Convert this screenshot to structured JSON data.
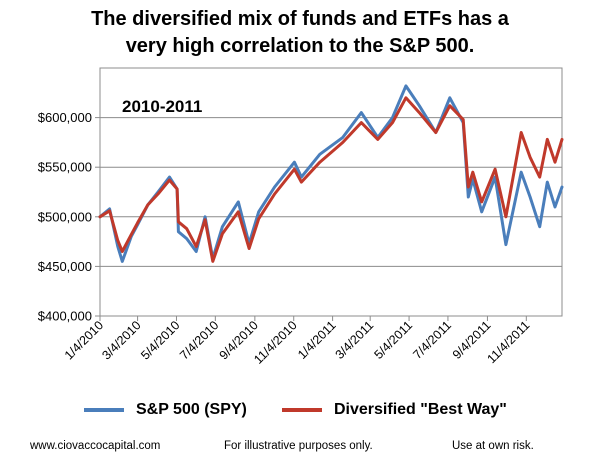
{
  "title_line1": "The diversified mix of funds and ETFs has a",
  "title_line2": "very high correlation to the S&P 500.",
  "footer": {
    "website": "www.ciovaccocapital.com",
    "disclaimer": "For illustrative purposes only.",
    "risk": "Use at own risk."
  },
  "chart_data": {
    "type": "line",
    "annotation": "2010-2011",
    "ylim": [
      400000,
      650000
    ],
    "yticks": [
      400000,
      450000,
      500000,
      550000,
      600000
    ],
    "ytick_labels": [
      "$400,000",
      "$450,000",
      "$500,000",
      "$550,000",
      "$600,000"
    ],
    "xlim": [
      "2010-01-04",
      "2011-12-30"
    ],
    "xtick_labels": [
      "1/4/2010",
      "3/4/2010",
      "5/4/2010",
      "7/4/2010",
      "9/4/2010",
      "11/4/2010",
      "1/4/2011",
      "3/4/2011",
      "5/4/2011",
      "7/4/2011",
      "9/4/2011",
      "11/4/2011"
    ],
    "xtick_dates": [
      "2010-01-04",
      "2010-03-04",
      "2010-05-04",
      "2010-07-04",
      "2010-09-04",
      "2010-11-04",
      "2011-01-04",
      "2011-03-04",
      "2011-05-04",
      "2011-07-04",
      "2011-09-04",
      "2011-11-04"
    ],
    "grid": "horizontal",
    "legend_position": "bottom",
    "series": [
      {
        "name": "S&P 500 (SPY)",
        "color": "#4a7ebb",
        "points": [
          [
            "2010-01-04",
            500000
          ],
          [
            "2010-01-19",
            508000
          ],
          [
            "2010-02-01",
            470000
          ],
          [
            "2010-02-08",
            455000
          ],
          [
            "2010-02-22",
            480000
          ],
          [
            "2010-03-04",
            492000
          ],
          [
            "2010-03-20",
            512000
          ],
          [
            "2010-04-05",
            525000
          ],
          [
            "2010-04-23",
            540000
          ],
          [
            "2010-05-05",
            528000
          ],
          [
            "2010-05-07",
            485000
          ],
          [
            "2010-05-20",
            478000
          ],
          [
            "2010-06-04",
            465000
          ],
          [
            "2010-06-18",
            500000
          ],
          [
            "2010-06-30",
            458000
          ],
          [
            "2010-07-15",
            490000
          ],
          [
            "2010-08-09",
            515000
          ],
          [
            "2010-08-26",
            473000
          ],
          [
            "2010-09-10",
            505000
          ],
          [
            "2010-10-05",
            530000
          ],
          [
            "2010-11-05",
            555000
          ],
          [
            "2010-11-16",
            540000
          ],
          [
            "2010-12-15",
            563000
          ],
          [
            "2011-01-20",
            580000
          ],
          [
            "2011-02-18",
            605000
          ],
          [
            "2011-03-16",
            580000
          ],
          [
            "2011-04-08",
            600000
          ],
          [
            "2011-04-29",
            632000
          ],
          [
            "2011-05-20",
            612000
          ],
          [
            "2011-06-15",
            585000
          ],
          [
            "2011-07-07",
            620000
          ],
          [
            "2011-07-28",
            595000
          ],
          [
            "2011-08-05",
            520000
          ],
          [
            "2011-08-12",
            538000
          ],
          [
            "2011-08-26",
            505000
          ],
          [
            "2011-09-16",
            540000
          ],
          [
            "2011-10-03",
            472000
          ],
          [
            "2011-10-27",
            545000
          ],
          [
            "2011-11-10",
            520000
          ],
          [
            "2011-11-25",
            490000
          ],
          [
            "2011-12-07",
            535000
          ],
          [
            "2011-12-19",
            510000
          ],
          [
            "2011-12-30",
            530000
          ]
        ]
      },
      {
        "name": "Diversified \"Best Way\"",
        "color": "#c0392b",
        "points": [
          [
            "2010-01-04",
            500000
          ],
          [
            "2010-01-19",
            506000
          ],
          [
            "2010-02-01",
            476000
          ],
          [
            "2010-02-08",
            465000
          ],
          [
            "2010-02-22",
            482000
          ],
          [
            "2010-03-04",
            494000
          ],
          [
            "2010-03-20",
            512000
          ],
          [
            "2010-04-05",
            523000
          ],
          [
            "2010-04-23",
            537000
          ],
          [
            "2010-05-05",
            528000
          ],
          [
            "2010-05-07",
            495000
          ],
          [
            "2010-05-20",
            488000
          ],
          [
            "2010-06-04",
            470000
          ],
          [
            "2010-06-18",
            497000
          ],
          [
            "2010-06-30",
            455000
          ],
          [
            "2010-07-15",
            483000
          ],
          [
            "2010-08-09",
            505000
          ],
          [
            "2010-08-26",
            468000
          ],
          [
            "2010-09-10",
            498000
          ],
          [
            "2010-10-05",
            523000
          ],
          [
            "2010-11-05",
            548000
          ],
          [
            "2010-11-16",
            535000
          ],
          [
            "2010-12-15",
            555000
          ],
          [
            "2011-01-20",
            575000
          ],
          [
            "2011-02-18",
            595000
          ],
          [
            "2011-03-16",
            578000
          ],
          [
            "2011-04-08",
            595000
          ],
          [
            "2011-04-29",
            620000
          ],
          [
            "2011-05-20",
            605000
          ],
          [
            "2011-06-15",
            585000
          ],
          [
            "2011-07-07",
            612000
          ],
          [
            "2011-07-28",
            598000
          ],
          [
            "2011-08-05",
            530000
          ],
          [
            "2011-08-12",
            545000
          ],
          [
            "2011-08-26",
            515000
          ],
          [
            "2011-09-16",
            548000
          ],
          [
            "2011-10-03",
            500000
          ],
          [
            "2011-10-27",
            585000
          ],
          [
            "2011-11-10",
            560000
          ],
          [
            "2011-11-25",
            540000
          ],
          [
            "2011-12-07",
            578000
          ],
          [
            "2011-12-19",
            555000
          ],
          [
            "2011-12-30",
            578000
          ]
        ]
      }
    ]
  }
}
